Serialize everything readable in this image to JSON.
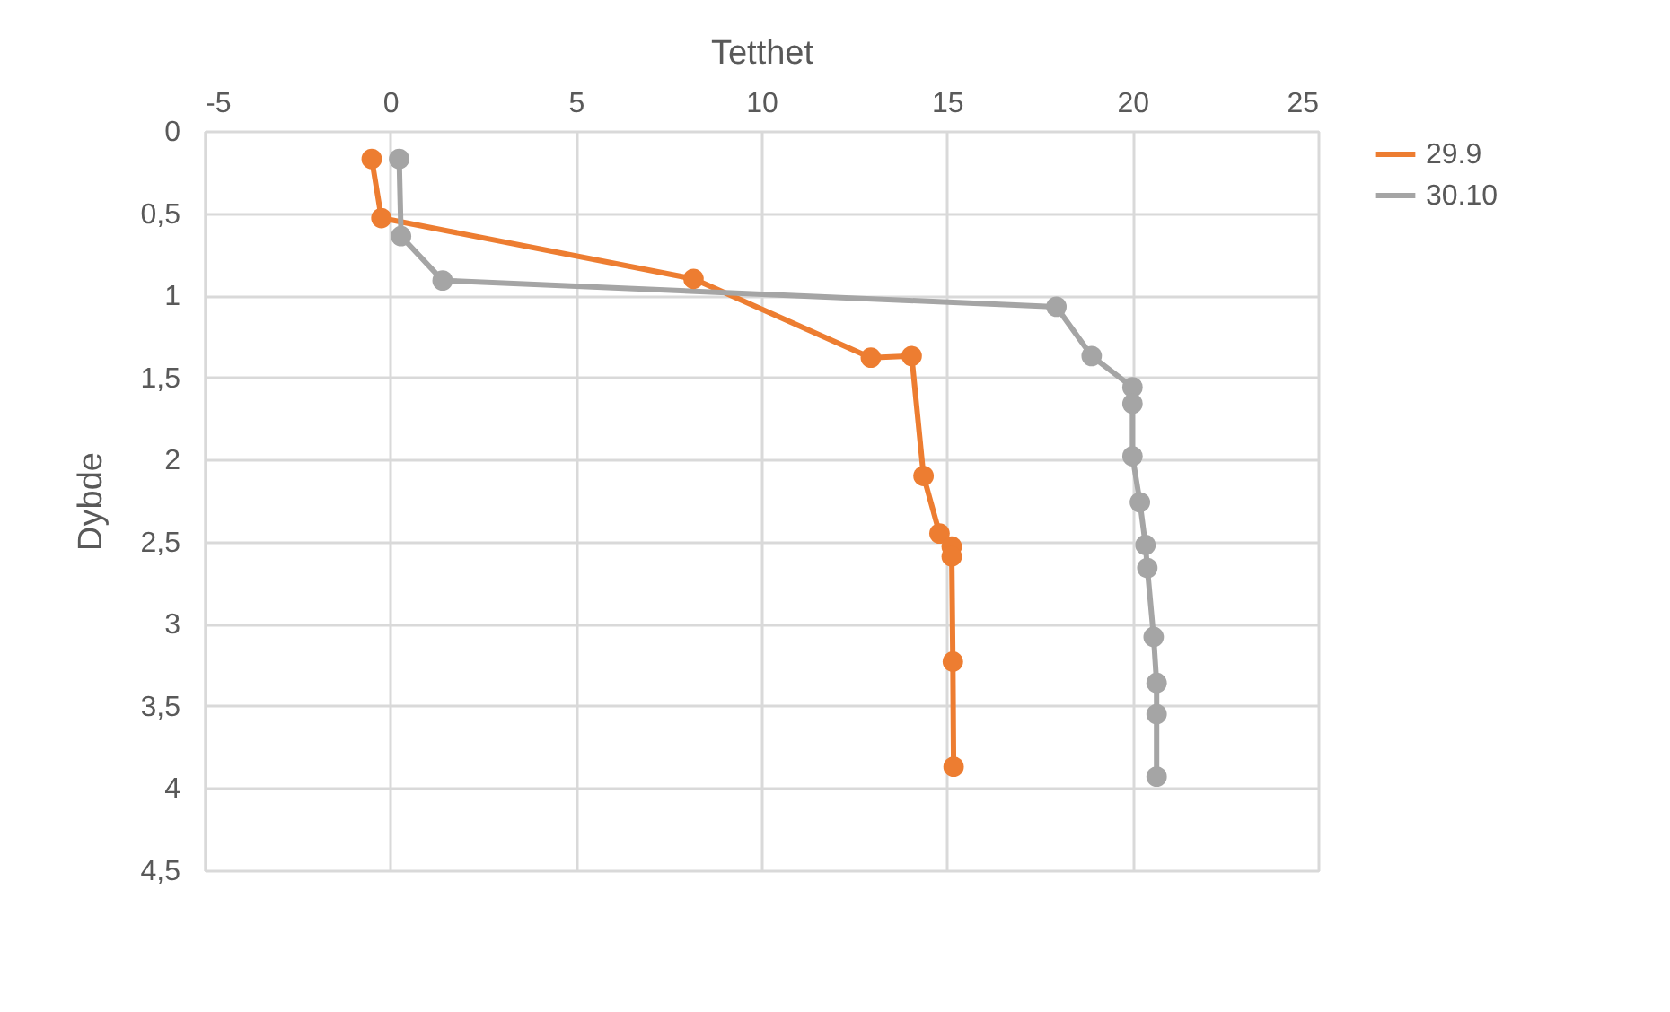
{
  "chart_data": {
    "type": "line",
    "xlabel": "Tetthet",
    "ylabel": "Dybde",
    "xlim": [
      -5,
      25
    ],
    "xticks": [
      -5,
      0,
      5,
      10,
      15,
      20,
      25
    ],
    "ylim": [
      4.5,
      0
    ],
    "yticks": [
      0,
      {
        "value": 0.5,
        "label": "0,5"
      },
      1,
      {
        "value": 1.5,
        "label": "1,5"
      },
      2,
      {
        "value": 2.5,
        "label": "2,5"
      },
      3,
      {
        "value": 3.5,
        "label": "3,5"
      },
      4,
      {
        "value": 4.5,
        "label": "4,5"
      }
    ],
    "grid": true,
    "legend": "right",
    "marker": "circle",
    "line_style": "solid",
    "series": [
      {
        "name": "29.9",
        "color": "#ed7d31",
        "x": [
          -0.5,
          -0.24,
          8.17,
          12.95,
          14.05,
          14.37,
          14.8,
          15.13,
          15.13,
          15.16,
          15.18
        ],
        "values": [
          0.17,
          0.53,
          0.9,
          1.38,
          1.37,
          2.1,
          2.45,
          2.53,
          2.59,
          3.23,
          3.87
        ]
      },
      {
        "name": "30.10",
        "color": "#a5a5a5",
        "x": [
          null,
          0.24,
          0.29,
          1.41,
          17.95,
          18.9,
          20.0,
          20.0,
          20.0,
          20.2,
          20.35,
          20.4,
          20.57,
          20.65,
          20.65,
          20.65
        ],
        "values": [
          null,
          0.17,
          0.64,
          0.91,
          1.07,
          1.37,
          1.56,
          1.66,
          1.98,
          2.26,
          2.52,
          2.66,
          3.08,
          3.36,
          3.55,
          3.93
        ]
      }
    ]
  }
}
